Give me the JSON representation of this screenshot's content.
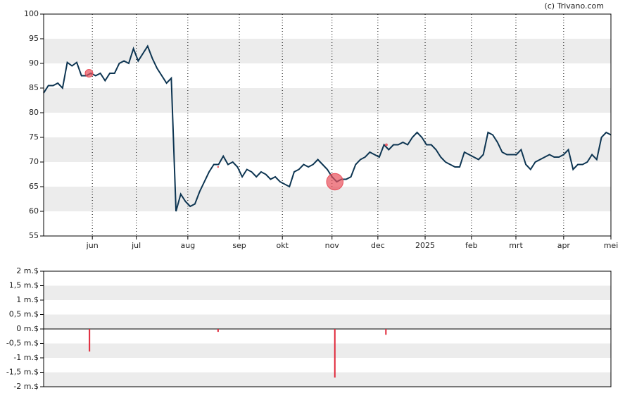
{
  "chart_data": [
    {
      "type": "line",
      "credit": "(c) Trivano.com",
      "color": "#0d3552",
      "values": [
        84,
        85.5,
        85.5,
        86,
        85,
        90.2,
        89.5,
        90.2,
        87.5,
        87.5,
        88,
        87.5,
        88,
        86.5,
        88,
        88,
        90,
        90.5,
        90,
        93,
        90.5,
        92,
        93.5,
        91,
        89,
        87.5,
        86,
        87,
        60,
        63.5,
        62,
        61,
        61.5,
        64,
        66,
        68,
        69.5,
        69.5,
        71.2,
        69.5,
        70,
        69,
        67,
        68.5,
        68,
        67,
        68,
        67.5,
        66.5,
        67,
        66,
        65.5,
        65,
        68,
        68.5,
        69.5,
        69,
        69.5,
        70.5,
        69.5,
        68.5,
        67,
        66,
        66.5,
        66.5,
        67,
        69.5,
        70.5,
        71,
        72,
        71.5,
        71,
        73.5,
        72.5,
        73.5,
        73.5,
        74,
        73.5,
        75,
        76,
        75,
        73.5,
        73.5,
        72.5,
        71,
        70,
        69.5,
        69,
        69,
        72,
        71.5,
        71,
        70.5,
        71.5,
        76,
        75.5,
        74,
        72,
        71.5,
        71.5,
        71.5,
        72.5,
        69.5,
        68.5,
        70,
        70.5,
        71,
        71.5,
        71,
        71,
        71.5,
        72.5,
        68.5,
        69.5,
        69.5,
        70,
        71.5,
        70.5,
        75,
        76,
        75.5
      ],
      "markers": {
        "x": [
          9.6,
          36.9,
          61.6,
          72.5
        ],
        "values": [
          88,
          69,
          66,
          73.5
        ],
        "color": "#e8505b"
      },
      "xlim": [
        0,
        120
      ],
      "xticks": [
        {
          "value": 10.3,
          "label": "jun"
        },
        {
          "value": 19.6,
          "label": "jul"
        },
        {
          "value": 30.5,
          "label": "aug"
        },
        {
          "value": 41.4,
          "label": "sep"
        },
        {
          "value": 50.5,
          "label": "okt"
        },
        {
          "value": 61.0,
          "label": "nov"
        },
        {
          "value": 70.7,
          "label": "dec"
        },
        {
          "value": 80.7,
          "label": "2025"
        },
        {
          "value": 90.5,
          "label": "feb"
        },
        {
          "value": 99.9,
          "label": "mrt"
        },
        {
          "value": 110.0,
          "label": "apr"
        },
        {
          "value": 120,
          "label": "mei"
        }
      ],
      "ylim": [
        55,
        100
      ],
      "yticks": [
        55,
        60,
        65,
        70,
        75,
        80,
        85,
        90,
        95,
        100
      ]
    },
    {
      "type": "bar",
      "color": "#e0283a",
      "x": [
        9.7,
        36.9,
        61.6,
        72.4
      ],
      "values": [
        -0.78,
        -0.1,
        -1.68,
        -0.2
      ],
      "xlim": [
        0,
        120
      ],
      "ylim": [
        -2,
        2
      ],
      "yticks": [
        {
          "value": 2,
          "label": "2 m.$"
        },
        {
          "value": 1.5,
          "label": "1,5 m.$"
        },
        {
          "value": 1,
          "label": "1 m.$"
        },
        {
          "value": 0.5,
          "label": "0,5 m.$"
        },
        {
          "value": 0,
          "label": "0 m.$"
        },
        {
          "value": -0.5,
          "label": "-0,5 m.$"
        },
        {
          "value": -1,
          "label": "-1 m.$"
        },
        {
          "value": -1.5,
          "label": "-1,5 m.$"
        },
        {
          "value": -2,
          "label": "-2 m.$"
        }
      ]
    }
  ]
}
